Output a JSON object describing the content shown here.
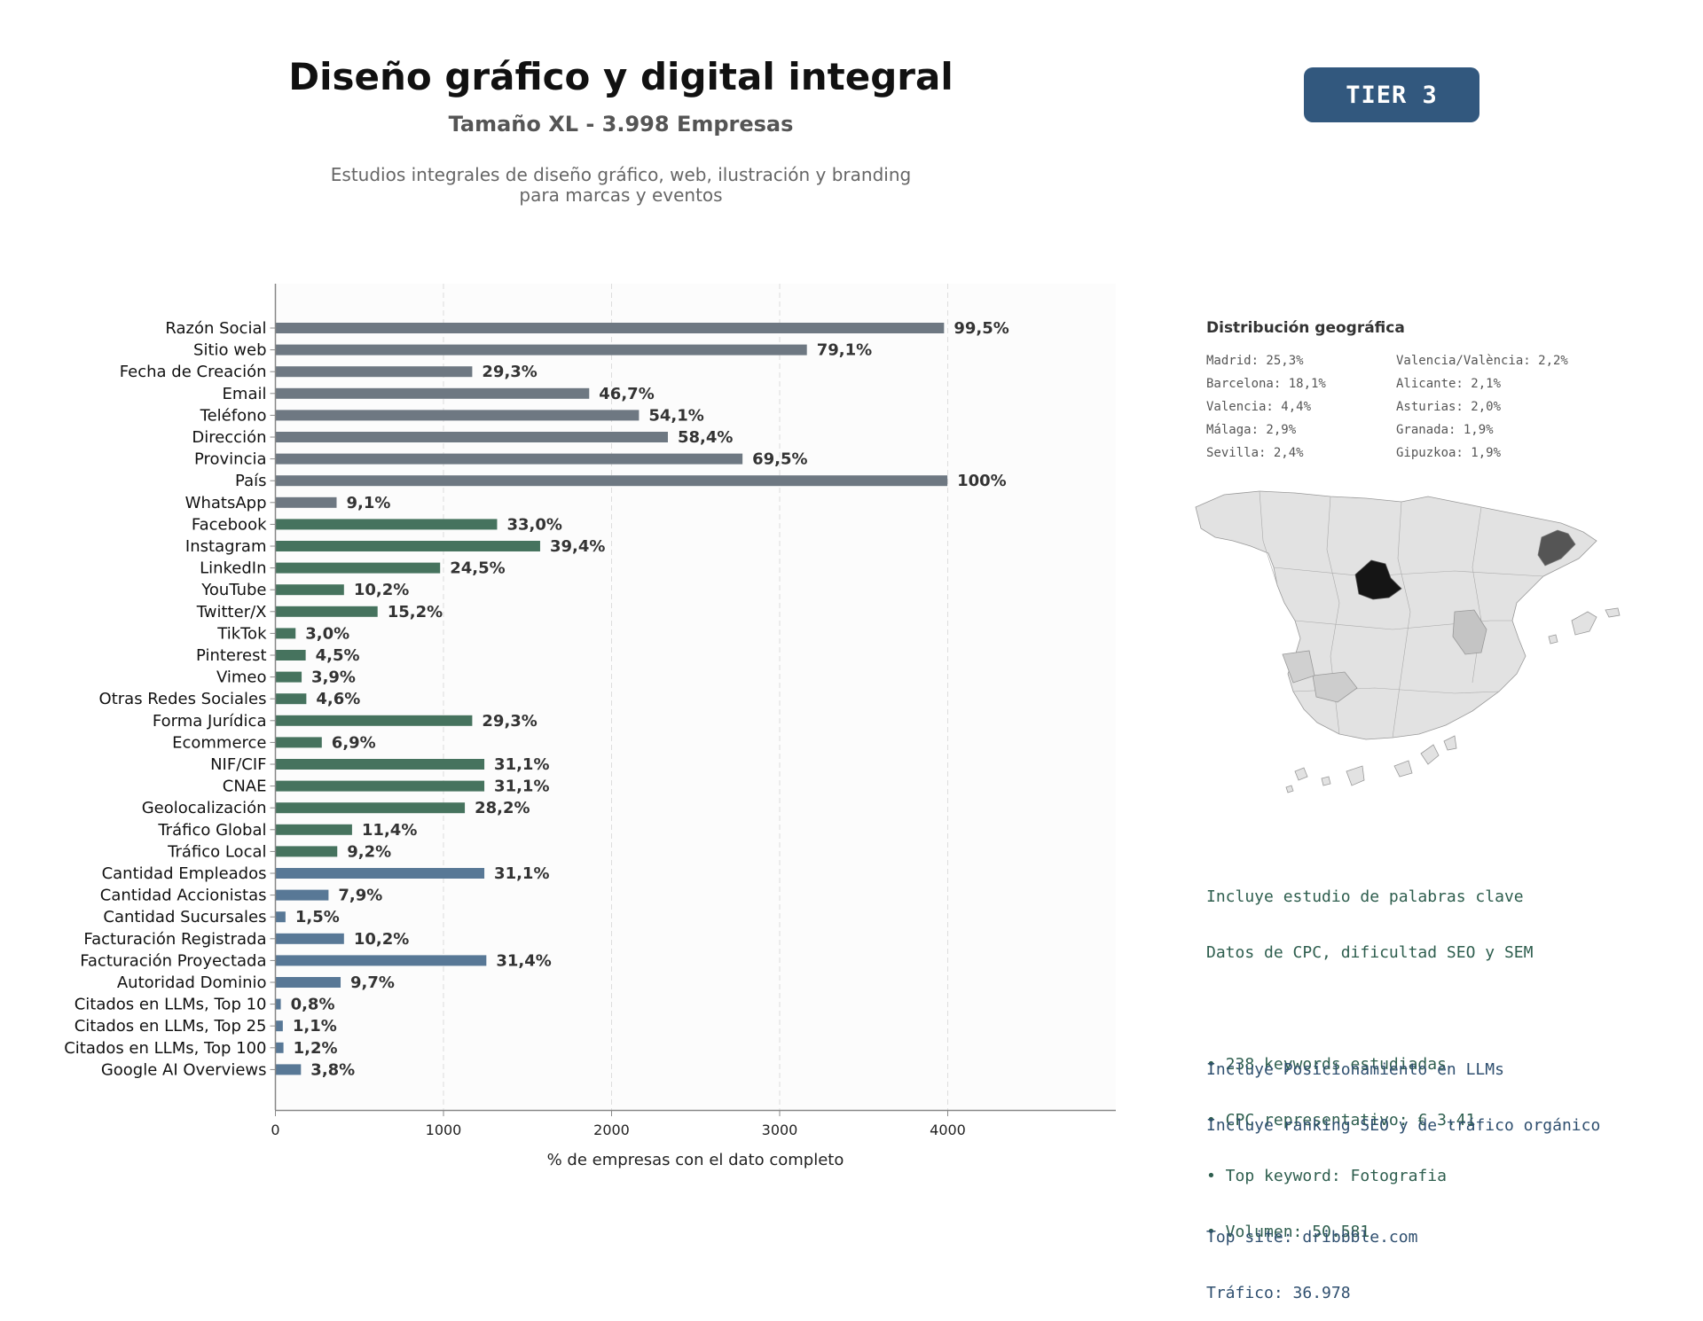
{
  "header": {
    "title": "Diseño gráfico y digital integral",
    "subtitle": "Tamaño XL - 3.998 Empresas",
    "description_line1": "Estudios integrales de diseño gráfico, web, ilustración y branding",
    "description_line2": "para marcas y eventos",
    "tier": "TIER 3"
  },
  "colors": {
    "group1": "#6e7882",
    "group2": "#46735e",
    "group3": "#587896",
    "tier_badge": "#32587e"
  },
  "chart_data": {
    "type": "bar",
    "orientation": "horizontal",
    "xlabel": "% de empresas con el dato completo",
    "ylabel": "",
    "xlim": [
      0,
      5000
    ],
    "xticks": [
      0,
      1000,
      2000,
      3000,
      4000
    ],
    "grid": "vertical dashed",
    "bars": [
      {
        "label": "Razón Social",
        "value": 3978,
        "pct": "99,5%",
        "group": 1
      },
      {
        "label": "Sitio web",
        "value": 3162,
        "pct": "79,1%",
        "group": 1
      },
      {
        "label": "Fecha de Creación",
        "value": 1171,
        "pct": "29,3%",
        "group": 1
      },
      {
        "label": "Email",
        "value": 1867,
        "pct": "46,7%",
        "group": 1
      },
      {
        "label": "Teléfono",
        "value": 2163,
        "pct": "54,1%",
        "group": 1
      },
      {
        "label": "Dirección",
        "value": 2335,
        "pct": "58,4%",
        "group": 1
      },
      {
        "label": "Provincia",
        "value": 2779,
        "pct": "69,5%",
        "group": 1
      },
      {
        "label": "País",
        "value": 3998,
        "pct": "100%",
        "group": 1
      },
      {
        "label": "WhatsApp",
        "value": 364,
        "pct": "9,1%",
        "group": 1
      },
      {
        "label": "Facebook",
        "value": 1319,
        "pct": "33,0%",
        "group": 2
      },
      {
        "label": "Instagram",
        "value": 1575,
        "pct": "39,4%",
        "group": 2
      },
      {
        "label": "LinkedIn",
        "value": 980,
        "pct": "24,5%",
        "group": 2
      },
      {
        "label": "YouTube",
        "value": 408,
        "pct": "10,2%",
        "group": 2
      },
      {
        "label": "Twitter/X",
        "value": 608,
        "pct": "15,2%",
        "group": 2
      },
      {
        "label": "TikTok",
        "value": 120,
        "pct": "3,0%",
        "group": 2
      },
      {
        "label": "Pinterest",
        "value": 180,
        "pct": "4,5%",
        "group": 2
      },
      {
        "label": "Vimeo",
        "value": 156,
        "pct": "3,9%",
        "group": 2
      },
      {
        "label": "Otras Redes Sociales",
        "value": 184,
        "pct": "4,6%",
        "group": 2
      },
      {
        "label": "Forma Jurídica",
        "value": 1171,
        "pct": "29,3%",
        "group": 2
      },
      {
        "label": "Ecommerce",
        "value": 276,
        "pct": "6,9%",
        "group": 2
      },
      {
        "label": "NIF/CIF",
        "value": 1243,
        "pct": "31,1%",
        "group": 2
      },
      {
        "label": "CNAE",
        "value": 1243,
        "pct": "31,1%",
        "group": 2
      },
      {
        "label": "Geolocalización",
        "value": 1127,
        "pct": "28,2%",
        "group": 2
      },
      {
        "label": "Tráfico Global",
        "value": 456,
        "pct": "11,4%",
        "group": 2
      },
      {
        "label": "Tráfico Local",
        "value": 368,
        "pct": "9,2%",
        "group": 2
      },
      {
        "label": "Cantidad Empleados",
        "value": 1243,
        "pct": "31,1%",
        "group": 3
      },
      {
        "label": "Cantidad Accionistas",
        "value": 316,
        "pct": "7,9%",
        "group": 3
      },
      {
        "label": "Cantidad Sucursales",
        "value": 60,
        "pct": "1,5%",
        "group": 3
      },
      {
        "label": "Facturación Registrada",
        "value": 408,
        "pct": "10,2%",
        "group": 3
      },
      {
        "label": "Facturación Proyectada",
        "value": 1255,
        "pct": "31,4%",
        "group": 3
      },
      {
        "label": "Autoridad Dominio",
        "value": 388,
        "pct": "9,7%",
        "group": 3
      },
      {
        "label": "Citados en LLMs, Top 10",
        "value": 32,
        "pct": "0,8%",
        "group": 3
      },
      {
        "label": "Citados en LLMs, Top 25",
        "value": 44,
        "pct": "1,1%",
        "group": 3
      },
      {
        "label": "Citados en LLMs, Top 100",
        "value": 48,
        "pct": "1,2%",
        "group": 3
      },
      {
        "label": "Google AI Overviews",
        "value": 152,
        "pct": "3,8%",
        "group": 3
      }
    ]
  },
  "geo": {
    "title": "Distribución geográfica",
    "items": [
      "Madrid: 25,3%",
      "Valencia/València: 2,2%",
      "Barcelona: 18,1%",
      "Alicante: 2,1%",
      "Valencia: 4,4%",
      "Asturias: 2,0%",
      "Málaga: 2,9%",
      "Granada: 1,9%",
      "Sevilla: 2,4%",
      "Gipuzkoa: 1,9%"
    ]
  },
  "keywords": {
    "line1": "Incluye estudio de palabras clave",
    "line2": "Datos de CPC, dificultad SEO y SEM",
    "bullet1": "• 238 keywords estudiadas",
    "bullet2": "• CPC representativo: € 3.41",
    "bullet3": "• Top keyword: Fotografia",
    "bullet4": "• Volumen: 50.581"
  },
  "llm": {
    "line1": "Incluye Posicionamiento en LLMs",
    "line2": "Incluye ranking SEO y de tráfico orgánico",
    "line3": "Top site: dribbble.com",
    "line4": "Tráfico: 36.978"
  }
}
